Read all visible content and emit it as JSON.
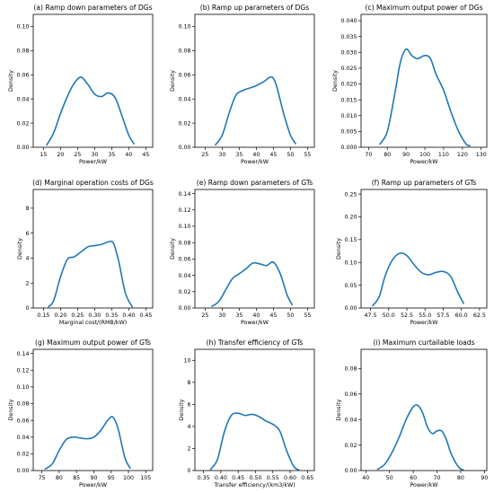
{
  "chart_data": [
    {
      "type": "line",
      "title": "(a) Ramp down parameters of DGs",
      "xlabel": "Power/kW",
      "ylabel": "Density",
      "xlim": [
        12,
        47
      ],
      "ylim": [
        0,
        0.11
      ],
      "xticks": [
        15,
        20,
        25,
        30,
        35,
        40,
        45
      ],
      "xtick_labels": [
        "15",
        "20",
        "25",
        "30",
        "35",
        "40",
        "45"
      ],
      "yticks": [
        0,
        0.02,
        0.04,
        0.06,
        0.08,
        0.1
      ],
      "ytick_labels": [
        "0.00",
        "0.02",
        "0.04",
        "0.06",
        "0.08",
        "0.10"
      ],
      "color": "#1f77b4",
      "x": [
        16,
        18,
        20,
        22,
        24,
        26,
        28,
        30,
        32,
        34,
        36,
        38,
        40,
        41.5
      ],
      "y": [
        0.002,
        0.012,
        0.028,
        0.042,
        0.053,
        0.058,
        0.052,
        0.044,
        0.042,
        0.045,
        0.041,
        0.026,
        0.01,
        0.003
      ]
    },
    {
      "type": "line",
      "title": "(b) Ramp up parameters of DGs",
      "xlabel": "Power/kW",
      "ylabel": "Density",
      "xlim": [
        22,
        57
      ],
      "ylim": [
        0,
        0.11
      ],
      "xticks": [
        25,
        30,
        35,
        40,
        45,
        50,
        55
      ],
      "xtick_labels": [
        "25",
        "30",
        "35",
        "40",
        "45",
        "50",
        "55"
      ],
      "yticks": [
        0,
        0.02,
        0.04,
        0.06,
        0.08,
        0.1
      ],
      "ytick_labels": [
        "0.00",
        "0.02",
        "0.04",
        "0.06",
        "0.08",
        "0.10"
      ],
      "color": "#1f77b4",
      "x": [
        28,
        30,
        32,
        34,
        36,
        38,
        40,
        42,
        44,
        45,
        46,
        48,
        50,
        51.5
      ],
      "y": [
        0.002,
        0.01,
        0.028,
        0.043,
        0.047,
        0.049,
        0.051,
        0.054,
        0.058,
        0.057,
        0.05,
        0.028,
        0.01,
        0.003
      ]
    },
    {
      "type": "line",
      "title": "(c) Maximum output power of DGs",
      "xlabel": "Power/kW",
      "ylabel": "Density",
      "xlim": [
        66,
        133
      ],
      "ylim": [
        0,
        0.042
      ],
      "xticks": [
        70,
        80,
        90,
        100,
        110,
        120,
        130
      ],
      "xtick_labels": [
        "70",
        "80",
        "90",
        "100",
        "110",
        "120",
        "130"
      ],
      "yticks": [
        0,
        0.005,
        0.01,
        0.015,
        0.02,
        0.025,
        0.03,
        0.035,
        0.04
      ],
      "ytick_labels": [
        "0.000",
        "0.005",
        "0.010",
        "0.015",
        "0.020",
        "0.025",
        "0.030",
        "0.035",
        "0.040"
      ],
      "color": "#1f77b4",
      "x": [
        76,
        80,
        84,
        87,
        90,
        93,
        96,
        100,
        103,
        106,
        110,
        114,
        118,
        122,
        124
      ],
      "y": [
        0.001,
        0.005,
        0.017,
        0.027,
        0.031,
        0.029,
        0.028,
        0.029,
        0.028,
        0.023,
        0.018,
        0.011,
        0.005,
        0.001,
        0.0005
      ]
    },
    {
      "type": "line",
      "title": "(d) Marginal operation costs of DGs",
      "xlabel": "Marginal cost/(RMB/kW)",
      "ylabel": "Density",
      "xlim": [
        0.12,
        0.47
      ],
      "ylim": [
        0,
        9.5
      ],
      "xticks": [
        0.15,
        0.2,
        0.25,
        0.3,
        0.35,
        0.4,
        0.45
      ],
      "xtick_labels": [
        "0.15",
        "0.20",
        "0.25",
        "0.30",
        "0.35",
        "0.40",
        "0.45"
      ],
      "yticks": [
        0,
        2,
        4,
        6,
        8
      ],
      "ytick_labels": [
        "0",
        "2",
        "4",
        "6",
        "8"
      ],
      "color": "#1f77b4",
      "x": [
        0.165,
        0.18,
        0.2,
        0.22,
        0.24,
        0.26,
        0.28,
        0.3,
        0.32,
        0.34,
        0.355,
        0.37,
        0.39,
        0.41
      ],
      "y": [
        0.1,
        0.6,
        2.5,
        3.9,
        4.1,
        4.5,
        4.9,
        5.0,
        5.1,
        5.3,
        5.2,
        3.8,
        1.2,
        0.1
      ]
    },
    {
      "type": "line",
      "title": "(e) Ramp down parameters of GTs",
      "xlabel": "Power/kW",
      "ylabel": "Density",
      "xlim": [
        22,
        57
      ],
      "ylim": [
        0,
        0.145
      ],
      "xticks": [
        25,
        30,
        35,
        40,
        45,
        50,
        55
      ],
      "xtick_labels": [
        "25",
        "30",
        "35",
        "40",
        "45",
        "50",
        "55"
      ],
      "yticks": [
        0,
        0.02,
        0.04,
        0.06,
        0.08,
        0.1,
        0.12,
        0.14
      ],
      "ytick_labels": [
        "0.00",
        "0.02",
        "0.04",
        "0.06",
        "0.08",
        "0.10",
        "0.12",
        "0.14"
      ],
      "color": "#1f77b4",
      "x": [
        27,
        29,
        31,
        33,
        35,
        37,
        39,
        41,
        43,
        45,
        47,
        49,
        50.5
      ],
      "y": [
        0.002,
        0.008,
        0.022,
        0.036,
        0.042,
        0.048,
        0.055,
        0.054,
        0.052,
        0.056,
        0.042,
        0.016,
        0.004
      ]
    },
    {
      "type": "line",
      "title": "(f) Ramp up parameters of GTs",
      "xlabel": "Power/kW",
      "ylabel": "Density",
      "xlim": [
        46.2,
        63.5
      ],
      "ylim": [
        0,
        0.26
      ],
      "xticks": [
        47.5,
        50,
        52.5,
        55,
        57.5,
        60,
        62.5
      ],
      "xtick_labels": [
        "47.5",
        "50.0",
        "52.5",
        "55.0",
        "57.5",
        "60.0",
        "62.5"
      ],
      "yticks": [
        0,
        0.05,
        0.1,
        0.15,
        0.2,
        0.25
      ],
      "ytick_labels": [
        "0.00",
        "0.05",
        "0.10",
        "0.15",
        "0.20",
        "0.25"
      ],
      "color": "#1f77b4",
      "x": [
        47.8,
        48.7,
        49.5,
        50.5,
        51.5,
        52.5,
        53.5,
        54.5,
        55.5,
        56.5,
        57.5,
        58.5,
        59.5,
        60.3
      ],
      "y": [
        0.005,
        0.025,
        0.07,
        0.105,
        0.12,
        0.115,
        0.095,
        0.078,
        0.073,
        0.078,
        0.08,
        0.07,
        0.035,
        0.01
      ]
    },
    {
      "type": "line",
      "title": "(g) Maximum output power of GTs",
      "xlabel": "Power/kW",
      "ylabel": "Density",
      "xlim": [
        72.5,
        107
      ],
      "ylim": [
        0,
        0.145
      ],
      "xticks": [
        75,
        80,
        85,
        90,
        95,
        100,
        105
      ],
      "xtick_labels": [
        "75",
        "80",
        "85",
        "90",
        "95",
        "100",
        "105"
      ],
      "yticks": [
        0,
        0.02,
        0.04,
        0.06,
        0.08,
        0.1,
        0.12,
        0.14
      ],
      "ytick_labels": [
        "0.00",
        "0.02",
        "0.04",
        "0.06",
        "0.08",
        "0.10",
        "0.12",
        "0.14"
      ],
      "color": "#1f77b4",
      "x": [
        76,
        78,
        80,
        82,
        84,
        86,
        88,
        90,
        92,
        94,
        95.5,
        97,
        99,
        100.5
      ],
      "y": [
        0.002,
        0.008,
        0.024,
        0.037,
        0.04,
        0.039,
        0.038,
        0.04,
        0.048,
        0.06,
        0.064,
        0.05,
        0.015,
        0.003
      ]
    },
    {
      "type": "line",
      "title": "(h) Transfer efficiency of GTs",
      "xlabel": "Transfer efficiency/(km3/kW)",
      "ylabel": "Density",
      "xlim": [
        0.325,
        0.67
      ],
      "ylim": [
        0,
        11
      ],
      "xticks": [
        0.35,
        0.4,
        0.45,
        0.5,
        0.55,
        0.6,
        0.65
      ],
      "xtick_labels": [
        "0.35",
        "0.40",
        "0.45",
        "0.50",
        "0.55",
        "0.60",
        "0.65"
      ],
      "yticks": [
        0,
        2,
        4,
        6,
        8,
        10
      ],
      "ytick_labels": [
        "0",
        "2",
        "4",
        "6",
        "8",
        "10"
      ],
      "color": "#1f77b4",
      "x": [
        0.37,
        0.39,
        0.41,
        0.43,
        0.45,
        0.47,
        0.49,
        0.51,
        0.53,
        0.55,
        0.57,
        0.59,
        0.61,
        0.625
      ],
      "y": [
        0.1,
        1.0,
        3.5,
        5.0,
        5.2,
        5.0,
        5.1,
        4.9,
        4.5,
        4.2,
        3.6,
        1.8,
        0.4,
        0.05
      ]
    },
    {
      "type": "line",
      "title": "(i) Maximum curtailable loads",
      "xlabel": "Power/kW",
      "ylabel": "Density",
      "xlim": [
        38,
        91
      ],
      "ylim": [
        0,
        0.095
      ],
      "xticks": [
        40,
        50,
        60,
        70,
        80,
        90
      ],
      "xtick_labels": [
        "40",
        "50",
        "60",
        "70",
        "80",
        "90"
      ],
      "yticks": [
        0,
        0.02,
        0.04,
        0.06,
        0.08
      ],
      "ytick_labels": [
        "0.00",
        "0.02",
        "0.04",
        "0.06",
        "0.08"
      ],
      "color": "#1f77b4",
      "x": [
        45,
        48,
        51,
        54,
        57,
        60,
        62,
        64,
        66,
        68,
        70,
        72,
        74,
        76,
        79,
        81
      ],
      "y": [
        0.001,
        0.005,
        0.014,
        0.026,
        0.04,
        0.05,
        0.051,
        0.045,
        0.034,
        0.029,
        0.031,
        0.031,
        0.024,
        0.013,
        0.003,
        0.0005
      ]
    }
  ]
}
